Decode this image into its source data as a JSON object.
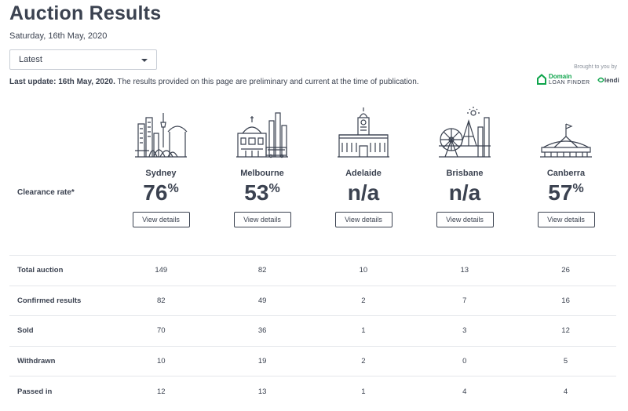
{
  "header": {
    "title": "Auction Results",
    "date": "Saturday, 16th May, 2020"
  },
  "filter": {
    "selected": "Latest"
  },
  "update": {
    "label": "Last update: 16th May, 2020.",
    "note": " The results provided on this page are preliminary and current at the time of publication."
  },
  "sponsor": {
    "label": "Brought to you by",
    "domain": "Domain",
    "loan_finder": "LOAN FINDER",
    "lendi": "lendi",
    "domain_color": "#0ea44b"
  },
  "clearance_label": "Clearance rate*",
  "cities": [
    {
      "name": "Sydney",
      "rate": "76",
      "unit": "%",
      "button": "View details",
      "icon": "sydney-skyline-icon"
    },
    {
      "name": "Melbourne",
      "rate": "53",
      "unit": "%",
      "button": "View details",
      "icon": "melbourne-skyline-icon"
    },
    {
      "name": "Adelaide",
      "rate": "n/a",
      "unit": "",
      "button": "View details",
      "icon": "adelaide-building-icon"
    },
    {
      "name": "Brisbane",
      "rate": "n/a",
      "unit": "",
      "button": "View details",
      "icon": "brisbane-skyline-icon"
    },
    {
      "name": "Canberra",
      "rate": "57",
      "unit": "%",
      "button": "View details",
      "icon": "canberra-parliament-icon"
    }
  ],
  "table": {
    "rows": [
      {
        "label": "Total auction",
        "values": [
          "149",
          "82",
          "10",
          "13",
          "26"
        ]
      },
      {
        "label": "Confirmed results",
        "values": [
          "82",
          "49",
          "2",
          "7",
          "16"
        ]
      },
      {
        "label": "Sold",
        "values": [
          "70",
          "36",
          "1",
          "3",
          "12"
        ]
      },
      {
        "label": "Withdrawn",
        "values": [
          "10",
          "19",
          "2",
          "0",
          "5"
        ]
      },
      {
        "label": "Passed in",
        "values": [
          "12",
          "13",
          "1",
          "4",
          "4"
        ]
      }
    ]
  },
  "colors": {
    "text": "#3b4250",
    "border": "#e4e7eb"
  }
}
